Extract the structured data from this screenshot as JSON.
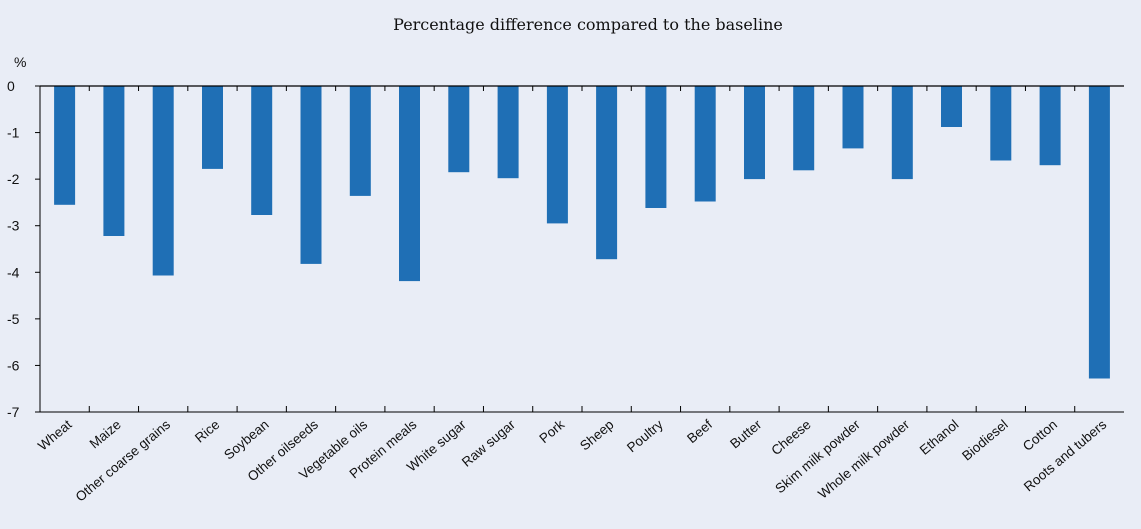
{
  "chart_data": {
    "type": "bar",
    "subtitle": "Percentage difference compared to the baseline",
    "yunit": "%",
    "ylim": [
      -7,
      0
    ],
    "yticks": [
      0,
      -1,
      -2,
      -3,
      -4,
      -5,
      -6,
      -7
    ],
    "grid": false,
    "legend": "none",
    "bar_color": "#1f6fb5",
    "categories": [
      "Wheat",
      "Maize",
      "Other coarse grains",
      "Rice",
      "Soybean",
      "Other oilseeds",
      "Vegetable oils",
      "Protein meals",
      "White sugar",
      "Raw sugar",
      "Pork",
      "Sheep",
      "Poultry",
      "Beef",
      "Butter",
      "Cheese",
      "Skim milk powder",
      "Whole milk powder",
      "Ethanol",
      "Biodiesel",
      "Cotton",
      "Roots and tubers"
    ],
    "values": [
      -2.55,
      -3.22,
      -4.07,
      -1.78,
      -2.77,
      -3.82,
      -2.36,
      -4.19,
      -1.85,
      -1.98,
      -2.95,
      -3.72,
      -2.62,
      -2.48,
      -2.0,
      -1.81,
      -1.34,
      -2.0,
      -0.88,
      -1.6,
      -1.7,
      -6.28
    ]
  }
}
